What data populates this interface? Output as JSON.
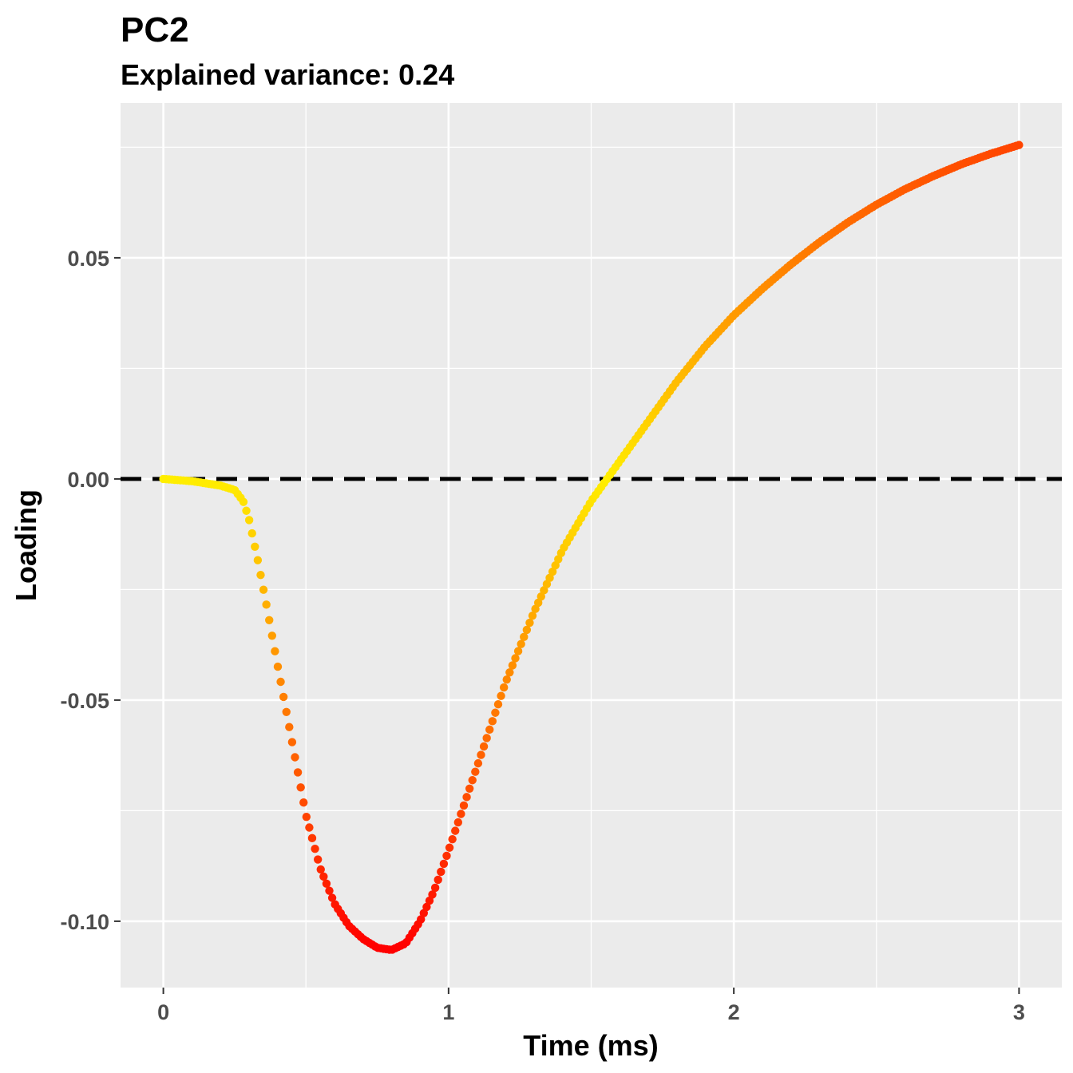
{
  "chart_data": {
    "type": "scatter",
    "title": "PC2",
    "subtitle": "Explained variance: 0.24",
    "xlabel": "Time (ms)",
    "ylabel": "Loading",
    "xlim": [
      -0.15,
      3.15
    ],
    "ylim": [
      -0.115,
      0.085
    ],
    "x_ticks": [
      0,
      1,
      2,
      3
    ],
    "x_tick_labels": [
      "0",
      "1",
      "2",
      "3"
    ],
    "y_ticks": [
      0.05,
      0.0,
      -0.05,
      -0.1
    ],
    "y_tick_labels": [
      "0.05",
      "0.00",
      "-0.05",
      "-0.10"
    ],
    "grid": true,
    "reference_line": {
      "y": 0,
      "style": "dashed",
      "color": "#000000"
    },
    "colors": {
      "panel_bg": "#ebebeb",
      "grid": "#ffffff",
      "low": "#ff0000",
      "high": "#ffee00"
    },
    "color_scale": {
      "min_abs": 0.0,
      "max_abs": 0.106,
      "note_mapping": "abs(loading) yellow to red"
    },
    "points": [
      [
        0.0,
        0.0
      ],
      [
        0.1,
        -0.0005
      ],
      [
        0.2,
        -0.0015
      ],
      [
        0.25,
        -0.0025
      ],
      [
        0.28,
        -0.005
      ],
      [
        0.3,
        -0.009
      ],
      [
        0.33,
        -0.018
      ],
      [
        0.36,
        -0.028
      ],
      [
        0.4,
        -0.042
      ],
      [
        0.45,
        -0.059
      ],
      [
        0.5,
        -0.076
      ],
      [
        0.55,
        -0.088
      ],
      [
        0.6,
        -0.096
      ],
      [
        0.65,
        -0.101
      ],
      [
        0.7,
        -0.104
      ],
      [
        0.75,
        -0.106
      ],
      [
        0.8,
        -0.1065
      ],
      [
        0.85,
        -0.105
      ],
      [
        0.9,
        -0.1
      ],
      [
        0.95,
        -0.093
      ],
      [
        1.0,
        -0.084
      ],
      [
        1.1,
        -0.065
      ],
      [
        1.2,
        -0.046
      ],
      [
        1.3,
        -0.03
      ],
      [
        1.4,
        -0.016
      ],
      [
        1.5,
        -0.005
      ],
      [
        1.6,
        0.004
      ],
      [
        1.7,
        0.013
      ],
      [
        1.8,
        0.022
      ],
      [
        1.9,
        0.03
      ],
      [
        2.0,
        0.037
      ],
      [
        2.1,
        0.043
      ],
      [
        2.2,
        0.0485
      ],
      [
        2.3,
        0.0535
      ],
      [
        2.4,
        0.058
      ],
      [
        2.5,
        0.062
      ],
      [
        2.6,
        0.0655
      ],
      [
        2.7,
        0.0685
      ],
      [
        2.8,
        0.0712
      ],
      [
        2.9,
        0.0735
      ],
      [
        3.0,
        0.0755
      ]
    ],
    "n_points": 300
  }
}
